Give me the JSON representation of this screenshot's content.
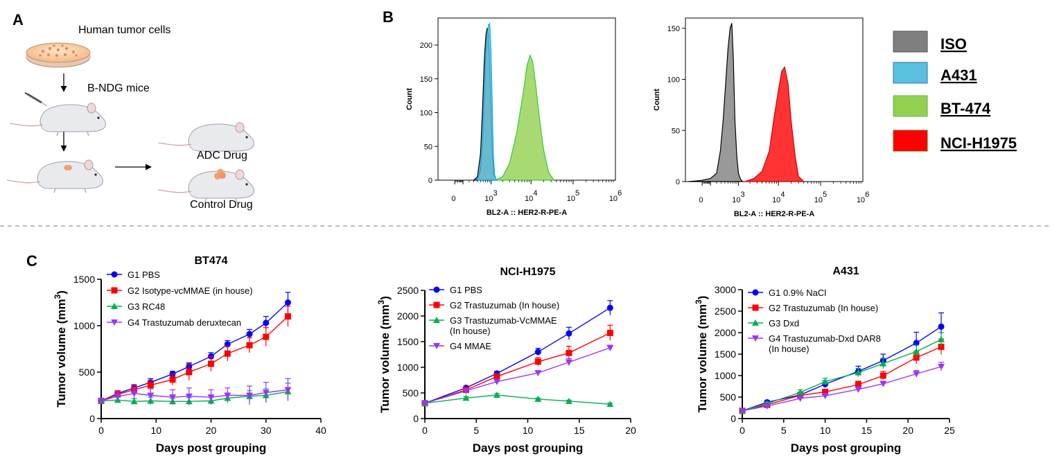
{
  "panel_labels": {
    "a": "A",
    "b": "B",
    "c": "C"
  },
  "schematic": {
    "step1": "Human tumor cells",
    "step2": "B-NDG mice",
    "arm1": "ADC Drug",
    "arm2": "Control Drug"
  },
  "histogram_legend": [
    {
      "label": "ISO",
      "color": "#7f7f7f"
    },
    {
      "label": "A431",
      "color": "#5bc0de"
    },
    {
      "label": "BT-474",
      "color": "#92d050"
    },
    {
      "label": "NCI-H1975",
      "color": "#ff0000"
    }
  ],
  "chart_data": [
    {
      "type": "area",
      "panel": "B-left",
      "xlabel": "BL2-A :: HER2-R-PE-A",
      "ylabel": "Count",
      "x_scale": "biexponential",
      "xlim": [
        -200,
        1000000
      ],
      "ylim": [
        0,
        240
      ],
      "y_ticks": [
        0,
        50,
        100,
        150,
        200
      ],
      "x_tick_labels": [
        {
          "v": 0,
          "base": "0",
          "exp": ""
        },
        {
          "v": 1000,
          "base": "10",
          "exp": "3"
        },
        {
          "v": 10000,
          "base": "10",
          "exp": "4"
        },
        {
          "v": 100000,
          "base": "10",
          "exp": "5"
        },
        {
          "v": 1000000,
          "base": "10",
          "exp": "6"
        }
      ],
      "series": [
        {
          "name": "ISO",
          "color": "#7f7f7f",
          "stroke": "#000000",
          "x": [
            300,
            400,
            500,
            580,
            650,
            720,
            780,
            850,
            920,
            1000,
            1080,
            1200,
            1400
          ],
          "y": [
            0,
            5,
            40,
            110,
            180,
            215,
            225,
            215,
            170,
            100,
            40,
            8,
            0
          ]
        },
        {
          "name": "A431",
          "color": "#5bc0de",
          "stroke": "#00b0f0",
          "x": [
            400,
            500,
            580,
            650,
            720,
            780,
            850,
            920,
            1000,
            1080,
            1150,
            1250,
            1400
          ],
          "y": [
            0,
            15,
            60,
            130,
            190,
            215,
            230,
            232,
            190,
            110,
            40,
            8,
            0
          ]
        },
        {
          "name": "BT-474",
          "color": "#92d050",
          "stroke": "#33cc33",
          "x": [
            1300,
            2000,
            3000,
            4500,
            6500,
            8000,
            9500,
            11000,
            13000,
            16000,
            20000,
            26000,
            35000
          ],
          "y": [
            0,
            5,
            25,
            70,
            130,
            170,
            185,
            175,
            140,
            90,
            45,
            12,
            0
          ]
        }
      ]
    },
    {
      "type": "area",
      "panel": "B-right",
      "xlabel": "BL2-A :: HER2-R-PE-A",
      "ylabel": "Count",
      "x_scale": "biexponential",
      "xlim": [
        -200,
        1000000
      ],
      "ylim": [
        0,
        160
      ],
      "y_ticks": [
        0,
        50,
        100,
        150
      ],
      "x_tick_labels": [
        {
          "v": 0,
          "base": "0",
          "exp": ""
        },
        {
          "v": 1000,
          "base": "10",
          "exp": "3"
        },
        {
          "v": 10000,
          "base": "10",
          "exp": "4"
        },
        {
          "v": 100000,
          "base": "10",
          "exp": "5"
        },
        {
          "v": 1000000,
          "base": "10",
          "exp": "6"
        }
      ],
      "series": [
        {
          "name": "ISO",
          "color": "#7f7f7f",
          "stroke": "#000000",
          "x": [
            -150,
            0,
            100,
            200,
            280,
            350,
            420,
            500,
            580,
            650,
            720,
            800,
            900,
            1000,
            1150,
            1300
          ],
          "y": [
            0,
            1,
            3,
            8,
            30,
            60,
            95,
            130,
            150,
            155,
            120,
            60,
            25,
            8,
            2,
            0
          ]
        },
        {
          "name": "NCI-H1975",
          "color": "#ff0000",
          "stroke": "#cc0000",
          "x": [
            1500,
            2500,
            4000,
            6000,
            8000,
            10000,
            12000,
            14000,
            17000,
            20000,
            25000,
            30000,
            40000
          ],
          "y": [
            0,
            3,
            10,
            30,
            65,
            90,
            108,
            112,
            95,
            60,
            25,
            5,
            0
          ]
        }
      ]
    },
    {
      "type": "line",
      "panel": "C-1",
      "title": "BT474",
      "xlabel": "Days post grouping",
      "ylabel": "Tumor volume (mm",
      "ylabel_sup": "3",
      "ylabel_end": ")",
      "xlim": [
        0,
        40
      ],
      "ylim": [
        0,
        1500
      ],
      "x_ticks": [
        0,
        10,
        20,
        30,
        40
      ],
      "y_ticks": [
        0,
        500,
        1000,
        1500
      ],
      "series": [
        {
          "name": "G1 PBS",
          "color": "#0000ff",
          "marker": "circle",
          "x": [
            0,
            3,
            6,
            9,
            13,
            16,
            20,
            23,
            27,
            30,
            34
          ],
          "y": [
            190,
            270,
            330,
            390,
            480,
            560,
            670,
            800,
            910,
            1030,
            1250
          ],
          "err": [
            20,
            30,
            35,
            40,
            30,
            40,
            40,
            40,
            50,
            70,
            110
          ]
        },
        {
          "name": "G2 Isotype-vcMMAE (in house)",
          "color": "#ff0000",
          "marker": "square",
          "x": [
            0,
            3,
            6,
            9,
            13,
            16,
            20,
            23,
            27,
            30,
            34
          ],
          "y": [
            190,
            260,
            310,
            360,
            420,
            500,
            590,
            700,
            790,
            880,
            1100
          ],
          "err": [
            20,
            40,
            45,
            50,
            60,
            90,
            80,
            80,
            80,
            100,
            110
          ]
        },
        {
          "name": "G3 RC48",
          "color": "#00b050",
          "marker": "triangle",
          "x": [
            0,
            3,
            6,
            9,
            13,
            16,
            20,
            23,
            27,
            30,
            34
          ],
          "y": [
            190,
            200,
            185,
            190,
            185,
            185,
            190,
            220,
            240,
            250,
            290
          ],
          "err": [
            20,
            30,
            30,
            40,
            30,
            40,
            40,
            50,
            60,
            70,
            90
          ]
        },
        {
          "name": "G4 Trastuzumab deruxtecan",
          "color": "#9933ff",
          "marker": "triangle-down",
          "x": [
            0,
            3,
            6,
            9,
            13,
            16,
            20,
            23,
            27,
            30,
            34
          ],
          "y": [
            190,
            240,
            270,
            250,
            230,
            240,
            230,
            250,
            250,
            280,
            310
          ],
          "err": [
            20,
            50,
            60,
            70,
            80,
            90,
            80,
            80,
            100,
            110,
            120
          ]
        }
      ]
    },
    {
      "type": "line",
      "panel": "C-2",
      "title": "NCI-H1975",
      "xlabel": "Days post grouping",
      "ylabel": "Tumor volume (mm",
      "ylabel_sup": "3",
      "ylabel_end": ")",
      "xlim": [
        0,
        20
      ],
      "ylim": [
        0,
        2500
      ],
      "x_ticks": [
        0,
        5,
        10,
        15,
        20
      ],
      "y_ticks": [
        0,
        500,
        1000,
        1500,
        2000,
        2500
      ],
      "series": [
        {
          "name": "G1 PBS",
          "color": "#0000ff",
          "marker": "circle",
          "x": [
            0,
            4,
            7,
            11,
            14,
            18
          ],
          "y": [
            300,
            600,
            880,
            1300,
            1660,
            2160
          ],
          "err": [
            20,
            30,
            40,
            70,
            120,
            140
          ]
        },
        {
          "name": "G2 Trastuzumab (In house)",
          "color": "#ff0000",
          "marker": "square",
          "x": [
            0,
            4,
            7,
            11,
            14,
            18
          ],
          "y": [
            300,
            560,
            820,
            1110,
            1280,
            1670
          ],
          "err": [
            20,
            30,
            40,
            80,
            130,
            150
          ]
        },
        {
          "name": "G3 Trastuzumab-VcMMAE (In house)",
          "name_line1": "G3 Trastuzumab-VcMMAE",
          "name_line2": "(In house)",
          "color": "#00b050",
          "marker": "triangle",
          "x": [
            0,
            4,
            7,
            11,
            14,
            18
          ],
          "y": [
            300,
            400,
            460,
            380,
            340,
            280
          ],
          "err": [
            20,
            30,
            30,
            20,
            20,
            20
          ]
        },
        {
          "name": "G4 MMAE",
          "color": "#9933ff",
          "marker": "triangle-down",
          "x": [
            0,
            4,
            7,
            11,
            14,
            18
          ],
          "y": [
            300,
            540,
            720,
            890,
            1100,
            1380
          ],
          "err": [
            20,
            30,
            40,
            40,
            70,
            50
          ]
        }
      ]
    },
    {
      "type": "line",
      "panel": "C-3",
      "title": "A431",
      "xlabel": "Days post grouping",
      "ylabel": "Tumor volume (mm",
      "ylabel_sup": "3",
      "ylabel_end": ")",
      "xlim": [
        0,
        25
      ],
      "ylim": [
        0,
        3000
      ],
      "x_ticks": [
        0,
        5,
        10,
        15,
        20,
        25
      ],
      "y_ticks": [
        0,
        500,
        1000,
        1500,
        2000,
        2500,
        3000
      ],
      "series": [
        {
          "name": "G1 0.9% NaCl",
          "color": "#0000ff",
          "marker": "circle",
          "x": [
            0,
            3,
            7,
            10,
            14,
            17,
            21,
            24
          ],
          "y": [
            180,
            380,
            550,
            800,
            1100,
            1350,
            1760,
            2140
          ],
          "err": [
            20,
            40,
            60,
            80,
            120,
            150,
            250,
            320
          ]
        },
        {
          "name": "G2 Trastuzumab (In house)",
          "color": "#ff0000",
          "marker": "square",
          "x": [
            0,
            3,
            7,
            10,
            14,
            17,
            21,
            24
          ],
          "y": [
            180,
            320,
            540,
            620,
            790,
            1000,
            1420,
            1670
          ],
          "err": [
            20,
            40,
            60,
            60,
            80,
            100,
            150,
            180
          ]
        },
        {
          "name": "G3 Dxd",
          "color": "#00b050",
          "marker": "triangle",
          "x": [
            0,
            3,
            7,
            10,
            14,
            17,
            21,
            24
          ],
          "y": [
            180,
            350,
            610,
            860,
            1070,
            1280,
            1560,
            1840
          ],
          "err": [
            20,
            40,
            60,
            80,
            100,
            120,
            150,
            160
          ]
        },
        {
          "name": "G4 Trastuzumab-Dxd DAR8 (In house)",
          "name_line1": "G4 Trastuzumab-Dxd DAR8",
          "name_line2": " (In house)",
          "color": "#9933ff",
          "marker": "triangle-down",
          "x": [
            0,
            3,
            7,
            10,
            14,
            17,
            21,
            24
          ],
          "y": [
            180,
            290,
            470,
            530,
            680,
            810,
            1040,
            1210
          ],
          "err": [
            20,
            30,
            40,
            50,
            60,
            60,
            80,
            100
          ]
        }
      ]
    }
  ]
}
